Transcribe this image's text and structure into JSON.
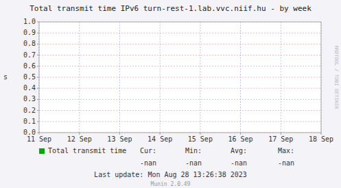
{
  "chart_data": {
    "type": "line",
    "title": "Total transmit time IPv6 turn-rest-1.lab.vvc.niif.hu - by week",
    "ylabel": "s",
    "categories": [
      "11 Sep",
      "12 Sep",
      "13 Sep",
      "14 Sep",
      "15 Sep",
      "16 Sep",
      "17 Sep",
      "18 Sep"
    ],
    "series": [
      {
        "name": "Total transmit time",
        "color": "#00aa00",
        "values": [
          null,
          null,
          null,
          null,
          null,
          null,
          null,
          null
        ]
      }
    ],
    "ylim": [
      0.0,
      1.0
    ],
    "yticks": [
      {
        "value": 0.0,
        "label": "0.0"
      },
      0.1,
      0.2,
      0.3,
      0.4,
      0.5,
      0.6,
      0.7,
      0.8,
      0.9,
      {
        "value": 1.0,
        "label": "1.0"
      }
    ],
    "grid": true,
    "legend": "bottom",
    "annotations": [
      "Cur:",
      "Min:",
      "Avg:",
      "Max:",
      "-nan",
      "-nan",
      "-nan",
      "-nan",
      "Last update: Mon Aug 28 13:26:38 2023",
      "Munin 2.0.49",
      "RRDTOOL / TOBI OETIKER"
    ]
  }
}
